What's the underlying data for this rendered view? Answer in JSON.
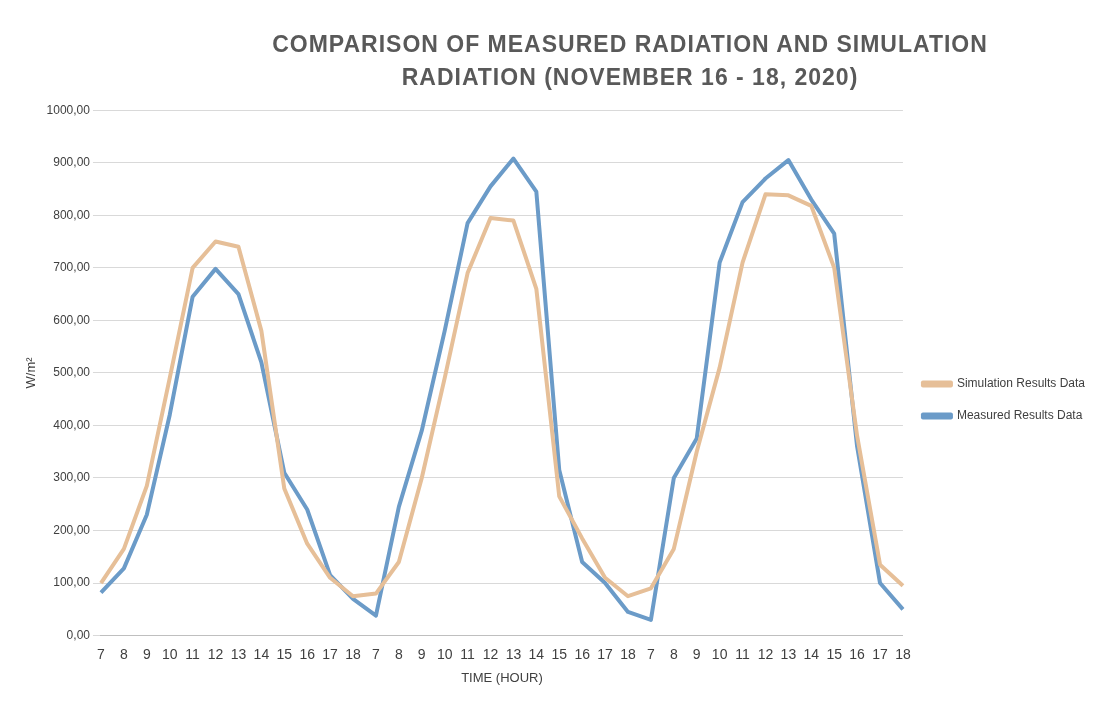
{
  "chart_data": {
    "type": "line",
    "title": "COMPARISON OF MEASURED RADIATION AND SIMULATION RADIATION (NOVEMBER 16 - 18, 2020)",
    "xlabel": "TIME (HOUR)",
    "ylabel": "W/m²",
    "categories": [
      "7",
      "8",
      "9",
      "10",
      "11",
      "12",
      "13",
      "14",
      "15",
      "16",
      "17",
      "18",
      "7",
      "8",
      "9",
      "10",
      "11",
      "12",
      "13",
      "14",
      "15",
      "16",
      "17",
      "18",
      "7",
      "8",
      "9",
      "10",
      "11",
      "12",
      "13",
      "14",
      "15",
      "16",
      "17",
      "18"
    ],
    "series": [
      {
        "name": "Simulation Results Data",
        "color": "#e6bf98",
        "values": [
          100,
          165,
          285,
          490,
          700,
          750,
          740,
          580,
          280,
          175,
          110,
          75,
          80,
          140,
          300,
          490,
          690,
          795,
          790,
          660,
          265,
          185,
          110,
          75,
          90,
          165,
          350,
          510,
          710,
          840,
          838,
          818,
          700,
          380,
          135,
          95
        ]
      },
      {
        "name": "Measured Results Data",
        "color": "#6b9bc8",
        "values": [
          82,
          128,
          230,
          420,
          645,
          698,
          650,
          520,
          310,
          240,
          115,
          70,
          38,
          245,
          390,
          580,
          785,
          855,
          908,
          845,
          315,
          140,
          100,
          45,
          30,
          300,
          375,
          710,
          825,
          870,
          905,
          830,
          765,
          360,
          100,
          50
        ]
      }
    ],
    "ylim": [
      0,
      1000
    ],
    "yticks": [
      {
        "value": 0,
        "label": "0,00"
      },
      {
        "value": 100,
        "label": "100,00"
      },
      {
        "value": 200,
        "label": "200,00"
      },
      {
        "value": 300,
        "label": "300,00"
      },
      {
        "value": 400,
        "label": "400,00"
      },
      {
        "value": 500,
        "label": "500,00"
      },
      {
        "value": 600,
        "label": "600,00"
      },
      {
        "value": 700,
        "label": "700,00"
      },
      {
        "value": 800,
        "label": "800,00"
      },
      {
        "value": 900,
        "label": "900,00"
      },
      {
        "value": 1000,
        "label": "1000,00"
      }
    ],
    "grid": "y",
    "legend": "right",
    "marker": "none",
    "line_style": "solid"
  }
}
